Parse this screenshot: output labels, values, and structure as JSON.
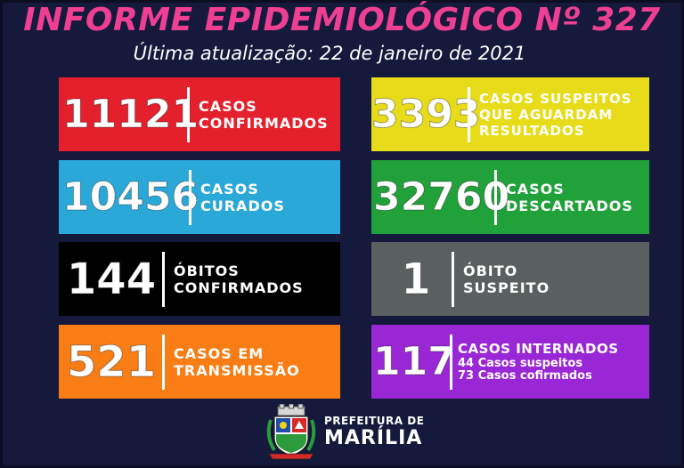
{
  "header": {
    "title": "INFORME EPIDEMIOLÓGICO Nº 327",
    "subtitle": "Última atualização: 22 de janeiro de 2021"
  },
  "cards": [
    {
      "value": "11121",
      "line1": "CASOS",
      "line2": "CONFIRMADOS",
      "color": "#e3202c"
    },
    {
      "value": "3393",
      "line1": "CASOS SUSPEITOS",
      "line2": "QUE AGUARDAM",
      "line3": "RESULTADOS",
      "color": "#e8dc1a"
    },
    {
      "value": "10456",
      "line1": "CASOS",
      "line2": "CURADOS",
      "color": "#2aa8d8"
    },
    {
      "value": "32760",
      "line1": "CASOS",
      "line2": "DESCARTADOS",
      "color": "#20a13a"
    },
    {
      "value": "144",
      "line1": "ÓBITOS",
      "line2": "CONFIRMADOS",
      "color": "#000000"
    },
    {
      "value": "1",
      "line1": "ÓBITO",
      "line2": "SUSPEITO",
      "color": "#5a5f60"
    },
    {
      "value": "521",
      "line1": "CASOS EM",
      "line2": "TRANSMISSÃO",
      "color": "#f77d14"
    },
    {
      "value": "117",
      "line1": "CASOS INTERNADOS",
      "line2": "44 Casos suspeitos",
      "line3": "73 Casos cofirmados",
      "color": "#9a27d6"
    }
  ],
  "footer": {
    "line1": "PREFEITURA DE",
    "line2": "MARÍLIA"
  }
}
